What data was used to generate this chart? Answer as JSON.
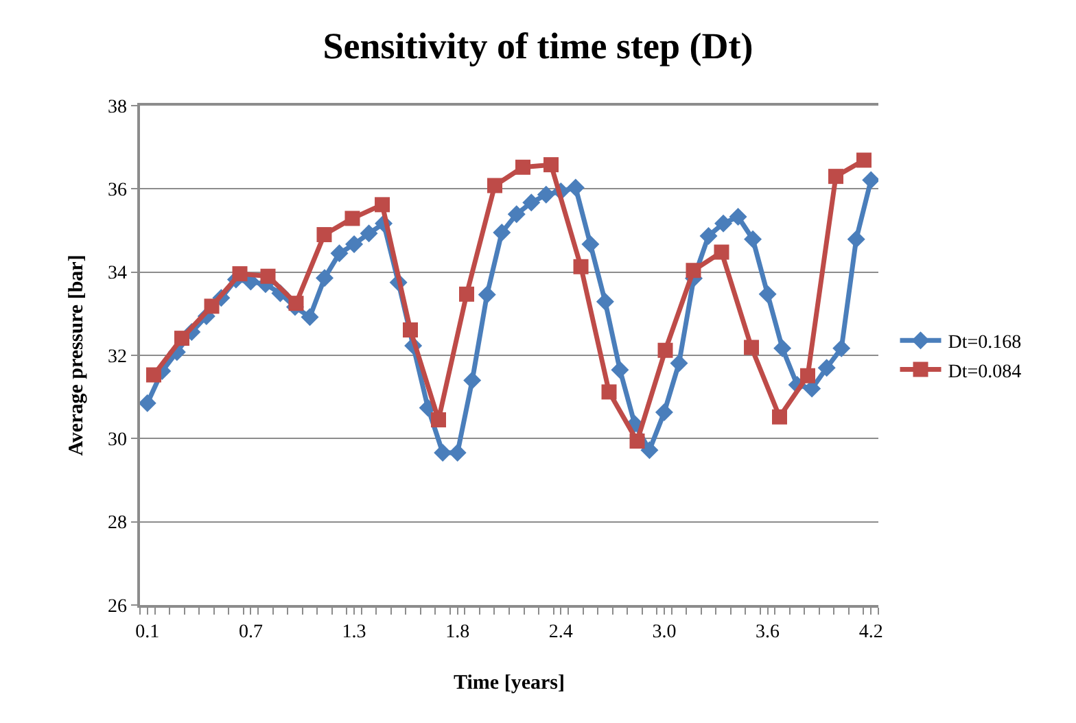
{
  "chart_data": {
    "type": "line",
    "title": "Sensitivity of time step (Dt)",
    "xlabel": "Time [years]",
    "ylabel": "Average pressure [bar]",
    "xlim": [
      0.042,
      4.242
    ],
    "xticks": [
      {
        "value": 0.084,
        "label": "0.1"
      },
      {
        "value": 0.672,
        "label": "0.7"
      },
      {
        "value": 1.26,
        "label": "1.3"
      },
      {
        "value": 1.848,
        "label": "1.8"
      },
      {
        "value": 2.436,
        "label": "2.4"
      },
      {
        "value": 3.024,
        "label": "3.0"
      },
      {
        "value": 3.612,
        "label": "3.6"
      },
      {
        "value": 4.2,
        "label": "4.2"
      }
    ],
    "ylim": [
      26,
      38
    ],
    "yticks": [
      26,
      28,
      30,
      32,
      34,
      36,
      38
    ],
    "grid": "y",
    "legend": "right",
    "series": [
      {
        "name": "Dt=0.168",
        "color": "#4a7ebb",
        "marker": "diamond",
        "x": [
          0.084,
          0.168,
          0.252,
          0.336,
          0.42,
          0.504,
          0.588,
          0.672,
          0.756,
          0.84,
          0.924,
          1.008,
          1.092,
          1.176,
          1.26,
          1.344,
          1.428,
          1.512,
          1.596,
          1.68,
          1.764,
          1.848,
          1.932,
          2.016,
          2.1,
          2.184,
          2.268,
          2.352,
          2.436,
          2.52,
          2.604,
          2.688,
          2.772,
          2.856,
          2.94,
          3.024,
          3.108,
          3.192,
          3.276,
          3.36,
          3.444,
          3.528,
          3.612,
          3.696,
          3.78,
          3.864,
          3.948,
          4.032,
          4.116,
          4.2
        ],
        "values": [
          30.85,
          31.62,
          32.08,
          32.56,
          32.94,
          33.38,
          33.82,
          33.77,
          33.71,
          33.49,
          33.16,
          32.92,
          33.86,
          34.45,
          34.67,
          34.93,
          35.17,
          33.75,
          32.23,
          30.74,
          29.66,
          29.66,
          31.4,
          33.46,
          34.95,
          35.39,
          35.67,
          35.86,
          35.94,
          36.03,
          34.67,
          33.29,
          31.65,
          30.35,
          29.72,
          30.63,
          31.81,
          33.85,
          34.87,
          35.17,
          35.33,
          34.79,
          33.47,
          32.17,
          31.29,
          31.2,
          31.7,
          32.17,
          34.79,
          36.21
        ]
      },
      {
        "name": "Dt=0.084",
        "color": "#be4b48",
        "marker": "square",
        "x": [
          0.12,
          0.28,
          0.45,
          0.61,
          0.77,
          0.93,
          1.09,
          1.25,
          1.42,
          1.58,
          1.74,
          1.9,
          2.06,
          2.22,
          2.38,
          2.55,
          2.71,
          2.87,
          3.03,
          3.19,
          3.35,
          3.52,
          3.68,
          3.84,
          4.0,
          4.16
        ],
        "values": [
          31.53,
          32.41,
          33.18,
          33.96,
          33.9,
          33.25,
          34.9,
          35.29,
          35.62,
          32.61,
          30.45,
          33.47,
          36.08,
          36.52,
          36.58,
          34.13,
          31.12,
          29.94,
          32.12,
          34.04,
          34.48,
          32.19,
          30.52,
          31.51,
          36.3,
          36.69
        ]
      }
    ]
  }
}
